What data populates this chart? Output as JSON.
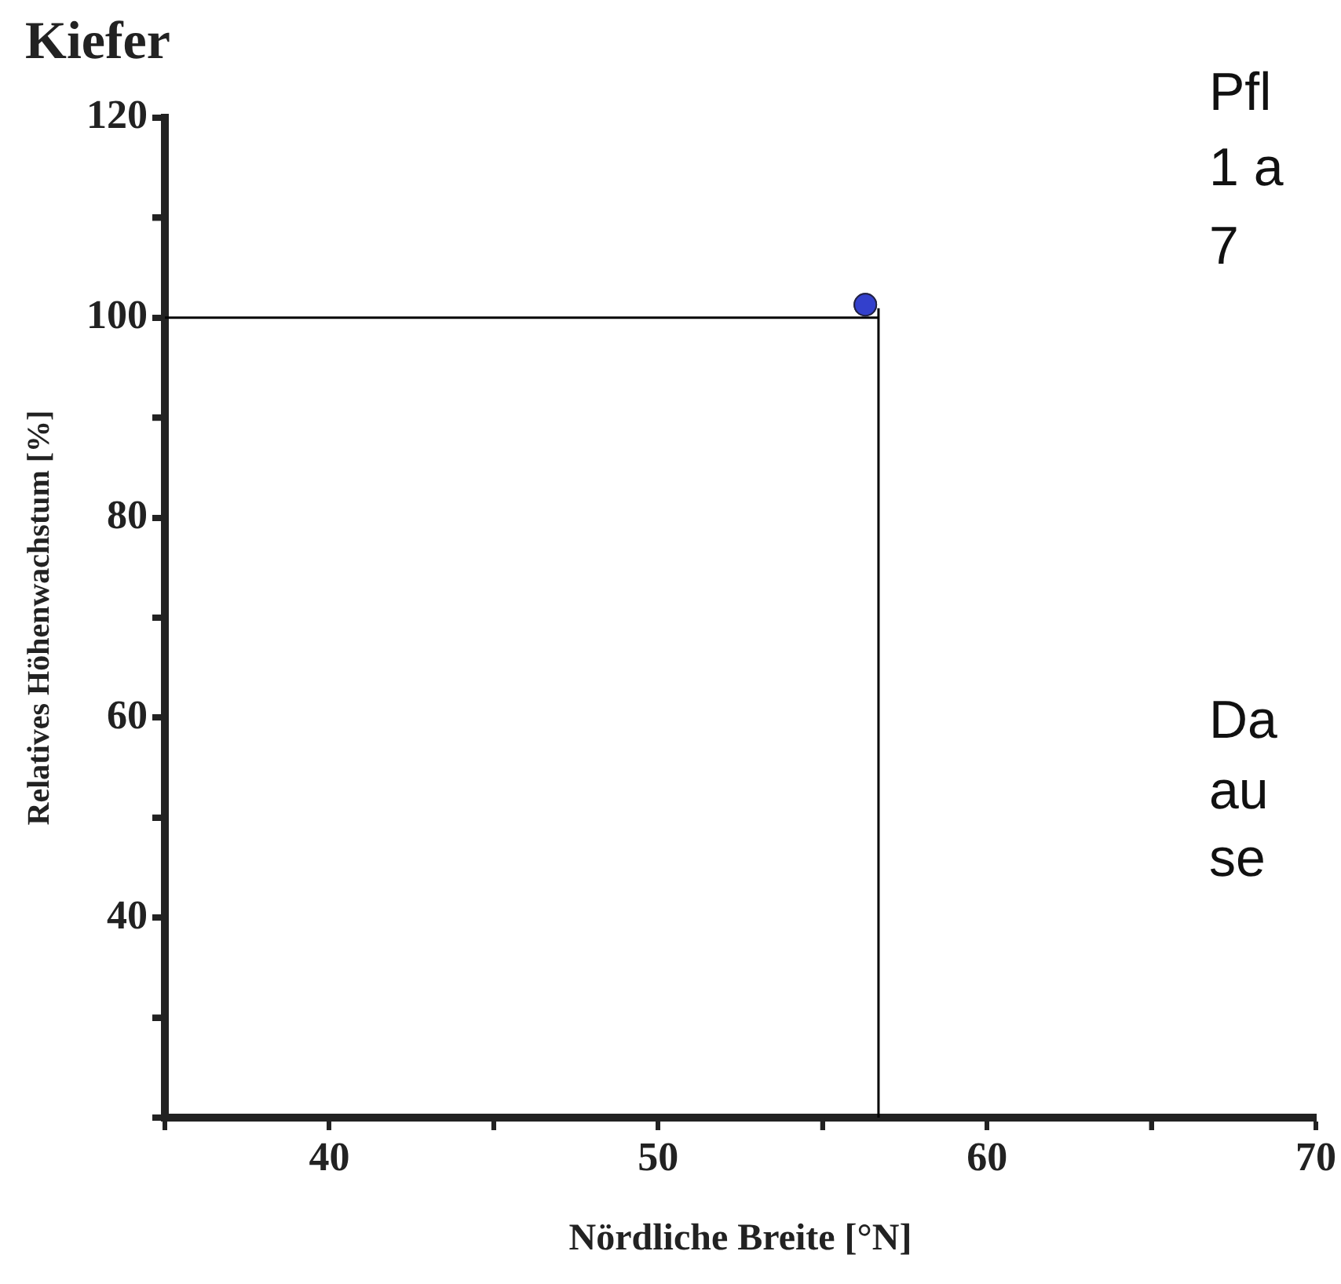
{
  "chart_data": {
    "type": "scatter",
    "title": "Kiefer",
    "xlabel": "Nördliche Breite [°N]",
    "ylabel": "Relatives Höhenwachstum [%]",
    "x": [
      56.3
    ],
    "values": [
      101.3
    ],
    "color": "#3340cc",
    "marker": "circle",
    "xlim": [
      35,
      70
    ],
    "xticks": [
      40,
      {
        "value": 45,
        "label": null
      },
      50,
      {
        "value": 55,
        "label": null
      },
      60,
      {
        "value": 65,
        "label": null
      },
      70
    ],
    "ylim": [
      20,
      120
    ],
    "yticks": [
      {
        "value": 30,
        "label": null
      },
      40,
      {
        "value": 50,
        "label": null
      },
      60,
      {
        "value": 70,
        "label": null
      },
      80,
      {
        "value": 90,
        "label": null
      },
      100,
      {
        "value": 110,
        "label": null
      },
      120
    ],
    "ref_lines": [
      {
        "axis": "y",
        "value": 100,
        "color": "#000000"
      },
      {
        "axis": "x",
        "value": 56.7,
        "color": "#000000"
      }
    ],
    "annotations": [
      "Pfl",
      "1 a",
      "7",
      "Da",
      "au",
      "se"
    ]
  }
}
